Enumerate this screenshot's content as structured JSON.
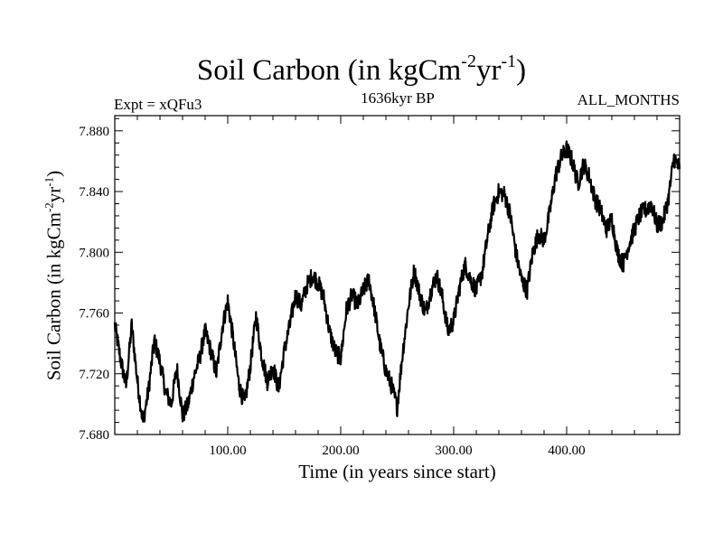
{
  "chart_data": {
    "type": "line",
    "title": {
      "main": "Soil Carbon (in kgCm",
      "exp1": "-2",
      "mid": "yr",
      "exp2": "-1",
      "end": ")"
    },
    "subtitle_left": "Expt = xQFu3",
    "subtitle_center": "1636kyr BP",
    "subtitle_right": "ALL_MONTHS",
    "xlabel": "Time (in years since start)",
    "ylabel": {
      "main": "Soil Carbon (in kgCm",
      "exp1": "-2",
      "mid": "yr",
      "exp2": "-1",
      "end": ")"
    },
    "xlim": [
      0,
      500
    ],
    "ylim": [
      7.68,
      7.89
    ],
    "x_major_ticks": [
      100,
      200,
      300,
      400
    ],
    "x_tick_labels": [
      "100.00",
      "200.00",
      "300.00",
      "400.00"
    ],
    "y_major_ticks": [
      7.68,
      7.72,
      7.76,
      7.8,
      7.84,
      7.88
    ],
    "y_tick_labels": [
      "7.680",
      "7.720",
      "7.760",
      "7.800",
      "7.840",
      "7.880"
    ],
    "line_color": "#000000",
    "series": [
      {
        "name": "Soil Carbon",
        "x": [
          0,
          5,
          10,
          15,
          20,
          25,
          30,
          35,
          40,
          45,
          50,
          55,
          60,
          65,
          70,
          75,
          80,
          85,
          90,
          95,
          100,
          105,
          110,
          115,
          120,
          125,
          130,
          135,
          140,
          145,
          150,
          155,
          160,
          165,
          170,
          175,
          180,
          185,
          190,
          195,
          200,
          205,
          210,
          215,
          220,
          225,
          230,
          235,
          240,
          245,
          250,
          255,
          260,
          265,
          270,
          275,
          280,
          285,
          290,
          295,
          300,
          305,
          310,
          315,
          320,
          325,
          330,
          335,
          340,
          345,
          350,
          355,
          360,
          365,
          370,
          375,
          380,
          385,
          390,
          395,
          400,
          405,
          410,
          415,
          420,
          425,
          430,
          435,
          440,
          445,
          450,
          455,
          460,
          465,
          470,
          475,
          480,
          485,
          490,
          495,
          500
        ],
        "y": [
          7.752,
          7.73,
          7.712,
          7.752,
          7.715,
          7.688,
          7.71,
          7.742,
          7.728,
          7.708,
          7.7,
          7.724,
          7.692,
          7.7,
          7.718,
          7.73,
          7.748,
          7.735,
          7.72,
          7.75,
          7.768,
          7.742,
          7.712,
          7.7,
          7.725,
          7.758,
          7.732,
          7.715,
          7.725,
          7.71,
          7.735,
          7.752,
          7.772,
          7.765,
          7.778,
          7.785,
          7.78,
          7.77,
          7.748,
          7.735,
          7.73,
          7.762,
          7.772,
          7.765,
          7.775,
          7.782,
          7.762,
          7.738,
          7.722,
          7.712,
          7.698,
          7.735,
          7.765,
          7.788,
          7.772,
          7.76,
          7.775,
          7.785,
          7.77,
          7.748,
          7.755,
          7.776,
          7.792,
          7.782,
          7.775,
          7.786,
          7.81,
          7.83,
          7.84,
          7.838,
          7.825,
          7.8,
          7.782,
          7.775,
          7.8,
          7.812,
          7.808,
          7.826,
          7.85,
          7.862,
          7.868,
          7.86,
          7.845,
          7.858,
          7.85,
          7.835,
          7.828,
          7.815,
          7.822,
          7.8,
          7.792,
          7.805,
          7.815,
          7.825,
          7.828,
          7.832,
          7.818,
          7.82,
          7.835,
          7.862,
          7.855
        ]
      }
    ]
  }
}
